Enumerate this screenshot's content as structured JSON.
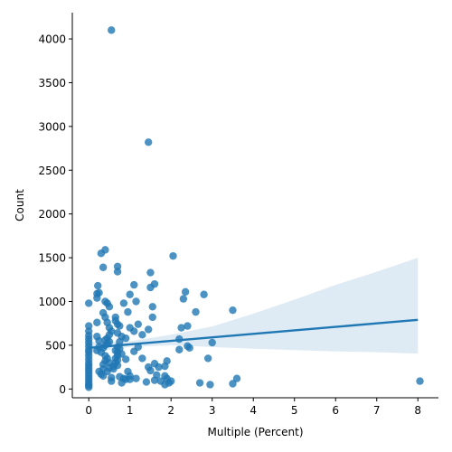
{
  "chart_data": {
    "type": "scatter",
    "xlabel": "Multiple (Percent)",
    "ylabel": "Count",
    "xlim": [
      -0.4,
      8.5
    ],
    "ylim": [
      -100,
      4300
    ],
    "xticks": [
      0,
      1,
      2,
      3,
      4,
      5,
      6,
      7,
      8
    ],
    "yticks": [
      0,
      500,
      1000,
      1500,
      2000,
      2500,
      3000,
      3500,
      4000
    ],
    "grid": false,
    "colors": {
      "points": "#1f77b4",
      "fit_line": "#1f77b4",
      "band": "#1f77b4"
    },
    "regression": {
      "x": [
        0,
        1,
        2,
        3,
        4,
        5,
        6,
        7,
        8
      ],
      "y": [
        470,
        510,
        550,
        590,
        630,
        670,
        710,
        750,
        790
      ],
      "ci_lower": [
        415,
        480,
        500,
        480,
        460,
        445,
        430,
        420,
        405
      ],
      "ci_upper": [
        530,
        545,
        620,
        715,
        860,
        1020,
        1190,
        1340,
        1500
      ]
    },
    "points": [
      [
        0.0,
        20
      ],
      [
        0.0,
        40
      ],
      [
        0.0,
        60
      ],
      [
        0.0,
        90
      ],
      [
        0.0,
        120
      ],
      [
        0.0,
        150
      ],
      [
        0.0,
        180
      ],
      [
        0.0,
        210
      ],
      [
        0.0,
        240
      ],
      [
        0.0,
        270
      ],
      [
        0.0,
        300
      ],
      [
        0.0,
        340
      ],
      [
        0.0,
        380
      ],
      [
        0.0,
        420
      ],
      [
        0.0,
        450
      ],
      [
        0.0,
        490
      ],
      [
        0.0,
        530
      ],
      [
        0.0,
        570
      ],
      [
        0.0,
        610
      ],
      [
        0.0,
        660
      ],
      [
        0.0,
        720
      ],
      [
        0.0,
        980
      ],
      [
        0.2,
        1040
      ],
      [
        0.2,
        1090
      ],
      [
        0.22,
        1180
      ],
      [
        0.25,
        1100
      ],
      [
        0.2,
        760
      ],
      [
        0.2,
        600
      ],
      [
        0.25,
        480
      ],
      [
        0.25,
        550
      ],
      [
        0.2,
        440
      ],
      [
        0.25,
        200
      ],
      [
        0.3,
        170
      ],
      [
        0.35,
        230
      ],
      [
        0.3,
        1550
      ],
      [
        0.4,
        1590
      ],
      [
        0.35,
        1390
      ],
      [
        0.4,
        1000
      ],
      [
        0.45,
        980
      ],
      [
        0.35,
        870
      ],
      [
        0.4,
        820
      ],
      [
        0.5,
        940
      ],
      [
        0.45,
        760
      ],
      [
        0.5,
        700
      ],
      [
        0.55,
        660
      ],
      [
        0.5,
        620
      ],
      [
        0.45,
        580
      ],
      [
        0.4,
        560
      ],
      [
        0.5,
        540
      ],
      [
        0.45,
        520
      ],
      [
        0.4,
        500
      ],
      [
        0.35,
        470
      ],
      [
        0.3,
        420
      ],
      [
        0.4,
        380
      ],
      [
        0.45,
        350
      ],
      [
        0.4,
        320
      ],
      [
        0.5,
        300
      ],
      [
        0.35,
        280
      ],
      [
        0.5,
        240
      ],
      [
        0.45,
        200
      ],
      [
        0.35,
        150
      ],
      [
        0.55,
        130
      ],
      [
        0.55,
        90
      ],
      [
        0.6,
        260
      ],
      [
        0.6,
        230
      ],
      [
        0.55,
        4100
      ],
      [
        0.7,
        1400
      ],
      [
        0.7,
        1340
      ],
      [
        0.65,
        820
      ],
      [
        0.65,
        780
      ],
      [
        0.7,
        740
      ],
      [
        0.75,
        720
      ],
      [
        0.7,
        640
      ],
      [
        0.8,
        600
      ],
      [
        0.75,
        540
      ],
      [
        0.7,
        480
      ],
      [
        0.75,
        460
      ],
      [
        0.65,
        440
      ],
      [
        0.7,
        420
      ],
      [
        0.8,
        400
      ],
      [
        0.7,
        380
      ],
      [
        0.65,
        350
      ],
      [
        0.7,
        330
      ],
      [
        0.65,
        300
      ],
      [
        0.7,
        270
      ],
      [
        0.75,
        140
      ],
      [
        0.8,
        70
      ],
      [
        0.85,
        980
      ],
      [
        0.85,
        120
      ],
      [
        0.9,
        580
      ],
      [
        0.9,
        340
      ],
      [
        0.9,
        110
      ],
      [
        0.95,
        880
      ],
      [
        0.95,
        200
      ],
      [
        1.0,
        1080
      ],
      [
        1.0,
        700
      ],
      [
        1.0,
        150
      ],
      [
        1.0,
        110
      ],
      [
        1.1,
        1190
      ],
      [
        1.1,
        660
      ],
      [
        1.1,
        430
      ],
      [
        1.15,
        1000
      ],
      [
        1.15,
        120
      ],
      [
        1.2,
        740
      ],
      [
        1.2,
        480
      ],
      [
        1.3,
        620
      ],
      [
        1.3,
        350
      ],
      [
        1.45,
        2820
      ],
      [
        1.5,
        1330
      ],
      [
        1.5,
        1160
      ],
      [
        1.45,
        680
      ],
      [
        1.45,
        250
      ],
      [
        1.4,
        80
      ],
      [
        1.5,
        210
      ],
      [
        1.55,
        940
      ],
      [
        1.55,
        820
      ],
      [
        1.6,
        1200
      ],
      [
        1.6,
        290
      ],
      [
        1.6,
        100
      ],
      [
        1.65,
        160
      ],
      [
        1.7,
        250
      ],
      [
        1.75,
        90
      ],
      [
        1.85,
        260
      ],
      [
        1.85,
        150
      ],
      [
        1.85,
        50
      ],
      [
        1.9,
        320
      ],
      [
        1.9,
        120
      ],
      [
        1.95,
        70
      ],
      [
        2.0,
        90
      ],
      [
        2.05,
        1520
      ],
      [
        2.2,
        570
      ],
      [
        2.2,
        450
      ],
      [
        2.25,
        700
      ],
      [
        2.3,
        1030
      ],
      [
        2.35,
        1110
      ],
      [
        2.4,
        720
      ],
      [
        2.4,
        490
      ],
      [
        2.45,
        470
      ],
      [
        2.6,
        880
      ],
      [
        2.7,
        70
      ],
      [
        2.8,
        1080
      ],
      [
        2.9,
        350
      ],
      [
        2.95,
        50
      ],
      [
        3.0,
        530
      ],
      [
        3.5,
        900
      ],
      [
        3.5,
        60
      ],
      [
        3.6,
        120
      ],
      [
        8.05,
        90
      ]
    ]
  }
}
